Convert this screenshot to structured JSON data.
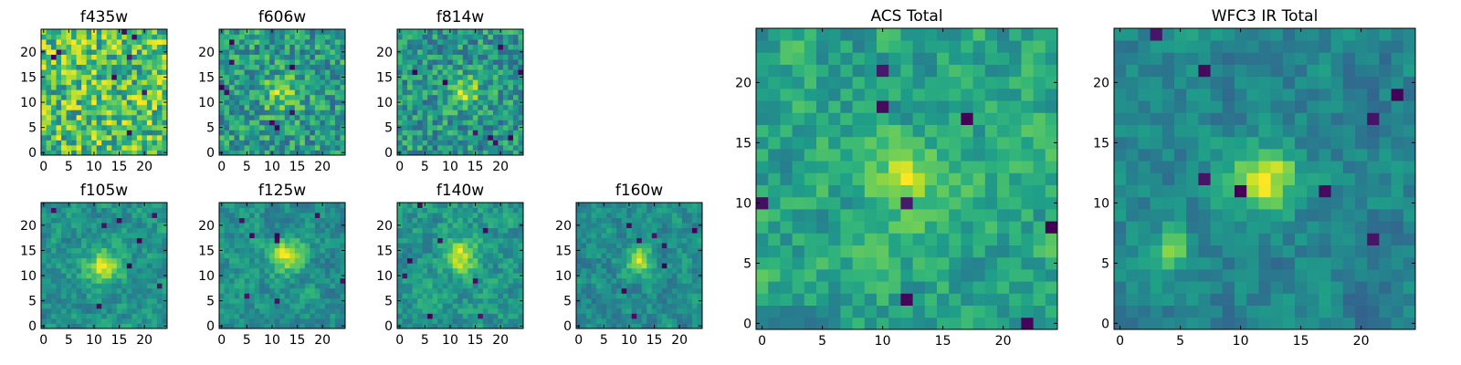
{
  "chart_data": [
    {
      "type": "heatmap",
      "title": "f435w",
      "grid_size": 25,
      "xlim": [
        -0.5,
        24.5
      ],
      "ylim": [
        -0.5,
        24.5
      ],
      "xticks": [
        0,
        5,
        10,
        15,
        20
      ],
      "yticks": [
        0,
        5,
        10,
        15,
        20
      ],
      "colormap": "viridis",
      "seed": 11,
      "blobs": []
    },
    {
      "type": "heatmap",
      "title": "f606w",
      "grid_size": 25,
      "xlim": [
        -0.5,
        24.5
      ],
      "ylim": [
        -0.5,
        24.5
      ],
      "xticks": [
        0,
        5,
        10,
        15,
        20
      ],
      "yticks": [
        0,
        5,
        10,
        15,
        20
      ],
      "colormap": "viridis",
      "seed": 23,
      "blobs": [
        {
          "x": 12,
          "y": 12,
          "amp": 0.35,
          "sigma": 2.5
        }
      ]
    },
    {
      "type": "heatmap",
      "title": "f814w",
      "grid_size": 25,
      "xlim": [
        -0.5,
        24.5
      ],
      "ylim": [
        -0.5,
        24.5
      ],
      "xticks": [
        0,
        5,
        10,
        15,
        20
      ],
      "yticks": [
        0,
        5,
        10,
        15,
        20
      ],
      "colormap": "viridis",
      "seed": 37,
      "blobs": [
        {
          "x": 13,
          "y": 12,
          "amp": 0.4,
          "sigma": 2.2
        }
      ]
    },
    {
      "type": "heatmap",
      "title": "f105w",
      "grid_size": 25,
      "xlim": [
        -0.5,
        24.5
      ],
      "ylim": [
        -0.5,
        24.5
      ],
      "xticks": [
        0,
        5,
        10,
        15,
        20
      ],
      "yticks": [
        0,
        5,
        10,
        15,
        20
      ],
      "colormap": "viridis",
      "seed": 41,
      "blobs": [
        {
          "x": 12,
          "y": 12,
          "amp": 0.55,
          "sigma": 2.5
        }
      ]
    },
    {
      "type": "heatmap",
      "title": "f125w",
      "grid_size": 25,
      "xlim": [
        -0.5,
        24.5
      ],
      "ylim": [
        -0.5,
        24.5
      ],
      "xticks": [
        0,
        5,
        10,
        15,
        20
      ],
      "yticks": [
        0,
        5,
        10,
        15,
        20
      ],
      "colormap": "viridis",
      "seed": 53,
      "blobs": [
        {
          "x": 13,
          "y": 14,
          "amp": 0.55,
          "sigma": 2.3
        }
      ]
    },
    {
      "type": "heatmap",
      "title": "f140w",
      "grid_size": 25,
      "xlim": [
        -0.5,
        24.5
      ],
      "ylim": [
        -0.5,
        24.5
      ],
      "xticks": [
        0,
        5,
        10,
        15,
        20
      ],
      "yticks": [
        0,
        5,
        10,
        15,
        20
      ],
      "colormap": "viridis",
      "seed": 67,
      "blobs": [
        {
          "x": 12,
          "y": 14,
          "amp": 0.5,
          "sigma": 2.3
        }
      ]
    },
    {
      "type": "heatmap",
      "title": "f160w",
      "grid_size": 25,
      "xlim": [
        -0.5,
        24.5
      ],
      "ylim": [
        -0.5,
        24.5
      ],
      "xticks": [
        0,
        5,
        10,
        15,
        20
      ],
      "yticks": [
        0,
        5,
        10,
        15,
        20
      ],
      "colormap": "viridis",
      "seed": 79,
      "blobs": [
        {
          "x": 12,
          "y": 13,
          "amp": 0.55,
          "sigma": 2.0
        }
      ]
    },
    {
      "type": "heatmap",
      "title": "ACS Total",
      "grid_size": 25,
      "xlim": [
        -0.5,
        24.5
      ],
      "ylim": [
        -0.5,
        24.5
      ],
      "xticks": [
        0,
        5,
        10,
        15,
        20
      ],
      "yticks": [
        0,
        5,
        10,
        15,
        20
      ],
      "colormap": "viridis",
      "seed": 97,
      "blobs": [
        {
          "x": 12,
          "y": 12,
          "amp": 0.35,
          "sigma": 2.0
        }
      ]
    },
    {
      "type": "heatmap",
      "title": "WFC3 IR Total",
      "grid_size": 25,
      "xlim": [
        -0.5,
        24.5
      ],
      "ylim": [
        -0.5,
        24.5
      ],
      "xticks": [
        0,
        5,
        10,
        15,
        20
      ],
      "yticks": [
        0,
        5,
        10,
        15,
        20
      ],
      "colormap": "viridis",
      "seed": 131,
      "blobs": [
        {
          "x": 12,
          "y": 12,
          "amp": 0.75,
          "sigma": 2.0
        },
        {
          "x": 4,
          "y": 6,
          "amp": 0.45,
          "sigma": 1.3
        }
      ]
    }
  ]
}
